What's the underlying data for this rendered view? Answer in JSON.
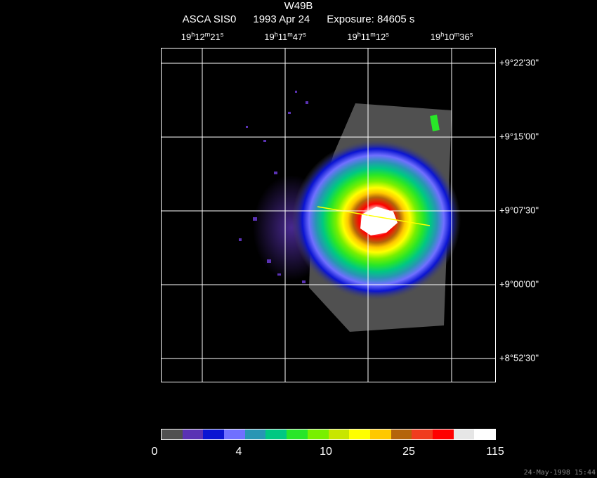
{
  "header": {
    "object": "W49B",
    "instrument": "ASCA SIS0",
    "date": "1993 Apr 24",
    "exposure": "Exposure: 84605 s"
  },
  "ra_ticks": [
    {
      "h": "19",
      "m": "12",
      "s": "21"
    },
    {
      "h": "19",
      "m": "11",
      "s": "47"
    },
    {
      "h": "19",
      "m": "11",
      "s": "12"
    },
    {
      "h": "19",
      "m": "10",
      "s": "36"
    }
  ],
  "dec_ticks": [
    "+9°22'30\"",
    "+9°15'00\"",
    "+9°07'30\"",
    "+9°00'00\"",
    "+8°52'30\""
  ],
  "colorbar": {
    "colors": [
      "#505050",
      "#5a32b4",
      "#0a14d2",
      "#7070ff",
      "#2896b4",
      "#00c882",
      "#28e628",
      "#78f000",
      "#c8e600",
      "#ffff00",
      "#ffc800",
      "#b4640a",
      "#f03c1e",
      "#ff0000",
      "#e6e6e6",
      "#ffffff"
    ],
    "labels": [
      "0",
      "4",
      "10",
      "25",
      "115"
    ]
  },
  "timestamp": "24-May-1998 15:44"
}
